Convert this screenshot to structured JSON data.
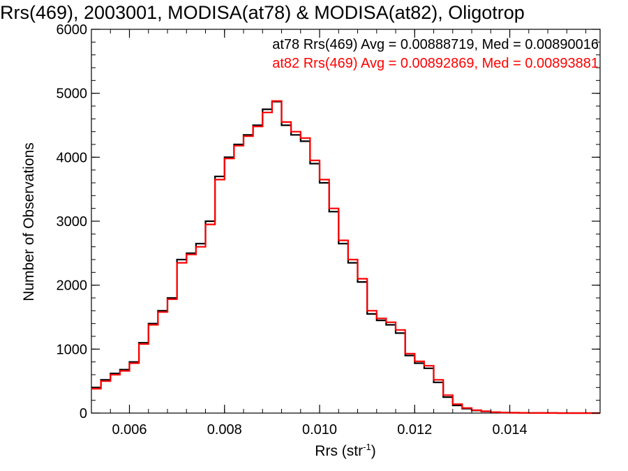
{
  "chart_data": {
    "type": "line",
    "style": "step histogram",
    "title": "Rrs(469), 2003001, MODISA(at78) & MODISA(at82), Oligotrop",
    "xlabel": "Rrs (str",
    "xlabel_superscript": "-1",
    "xlabel_suffix": ")",
    "ylabel": "Number of Observations",
    "xlim": [
      0.0052,
      0.0159
    ],
    "ylim": [
      0,
      6000
    ],
    "xticks": [
      0.006,
      0.008,
      0.01,
      0.012,
      0.014
    ],
    "xtick_labels": [
      "0.006",
      "0.008",
      "0.010",
      "0.012",
      "0.014"
    ],
    "yticks": [
      0,
      1000,
      2000,
      3000,
      4000,
      5000,
      6000
    ],
    "ytick_labels": [
      "0",
      "1000",
      "2000",
      "3000",
      "4000",
      "5000",
      "6000"
    ],
    "grid": false,
    "legend_position": "top-right",
    "series": [
      {
        "name": "at78",
        "color": "#000000",
        "legend": "at78 Rrs(469) Avg = 0.00888719, Med = 0.00890016",
        "x": [
          0.0052,
          0.0054,
          0.0056,
          0.0058,
          0.006,
          0.0062,
          0.0064,
          0.0066,
          0.0068,
          0.007,
          0.0072,
          0.0074,
          0.0076,
          0.0078,
          0.008,
          0.0082,
          0.0084,
          0.0086,
          0.0088,
          0.009,
          0.0092,
          0.0094,
          0.0096,
          0.0098,
          0.01,
          0.0102,
          0.0104,
          0.0106,
          0.0108,
          0.011,
          0.0112,
          0.0114,
          0.0116,
          0.0118,
          0.012,
          0.0122,
          0.0124,
          0.0126,
          0.0128,
          0.013,
          0.0132,
          0.0134,
          0.0136,
          0.0138,
          0.014,
          0.0142,
          0.0144,
          0.0146,
          0.0148,
          0.015,
          0.0152,
          0.0154,
          0.0156,
          0.0159
        ],
        "y": [
          400,
          520,
          620,
          680,
          800,
          1100,
          1400,
          1600,
          1800,
          2400,
          2500,
          2650,
          3000,
          3700,
          4000,
          4200,
          4350,
          4500,
          4750,
          4870,
          4500,
          4350,
          4250,
          3900,
          3600,
          3150,
          2650,
          2350,
          2050,
          1550,
          1450,
          1380,
          1250,
          900,
          780,
          700,
          480,
          250,
          120,
          70,
          40,
          25,
          12,
          8,
          5,
          3,
          2,
          1,
          1,
          0,
          0,
          0,
          0,
          0
        ]
      },
      {
        "name": "at82",
        "color": "#ff0000",
        "legend": "at82 Rrs(469) Avg = 0.00892869, Med = 0.00893881",
        "x": [
          0.0052,
          0.0054,
          0.0056,
          0.0058,
          0.006,
          0.0062,
          0.0064,
          0.0066,
          0.0068,
          0.007,
          0.0072,
          0.0074,
          0.0076,
          0.0078,
          0.008,
          0.0082,
          0.0084,
          0.0086,
          0.0088,
          0.009,
          0.0092,
          0.0094,
          0.0096,
          0.0098,
          0.01,
          0.0102,
          0.0104,
          0.0106,
          0.0108,
          0.011,
          0.0112,
          0.0114,
          0.0116,
          0.0118,
          0.012,
          0.0122,
          0.0124,
          0.0126,
          0.0128,
          0.013,
          0.0132,
          0.0134,
          0.0136,
          0.0138,
          0.014,
          0.0142,
          0.0144,
          0.0146,
          0.0148,
          0.015,
          0.0152,
          0.0154,
          0.0156,
          0.0159
        ],
        "y": [
          380,
          500,
          600,
          660,
          780,
          1080,
          1380,
          1580,
          1780,
          2350,
          2480,
          2600,
          2950,
          3650,
          3980,
          4180,
          4330,
          4480,
          4700,
          4880,
          4550,
          4400,
          4300,
          3950,
          3650,
          3200,
          2700,
          2400,
          2100,
          1600,
          1480,
          1420,
          1300,
          930,
          810,
          740,
          520,
          280,
          140,
          80,
          45,
          28,
          14,
          9,
          6,
          4,
          2,
          1,
          1,
          0,
          0,
          0,
          0,
          0
        ]
      }
    ]
  }
}
